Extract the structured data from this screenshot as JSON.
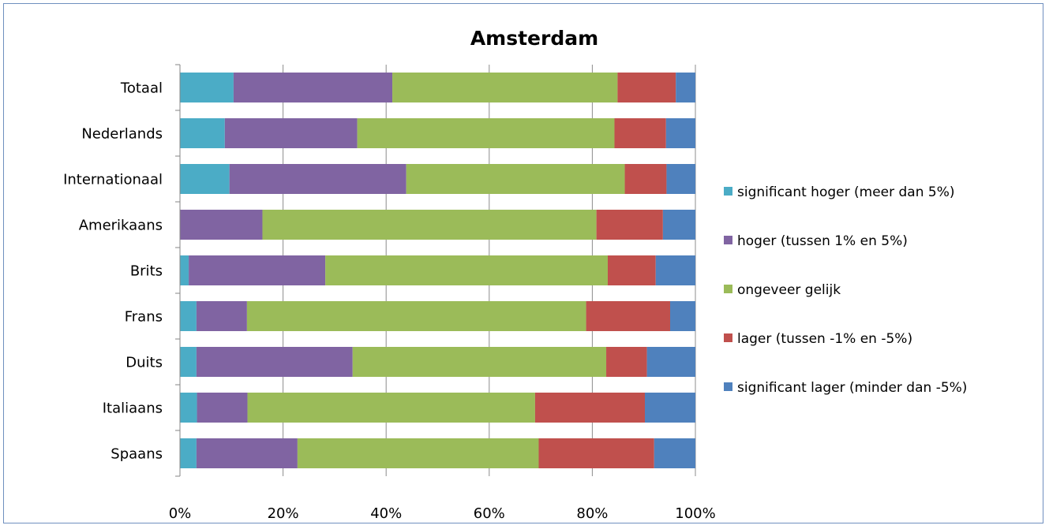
{
  "chart_data": {
    "type": "bar",
    "orientation": "horizontal",
    "stacked": true,
    "normalized": true,
    "title": "Amsterdam",
    "xlabel": "",
    "ylabel": "",
    "xlim": [
      0,
      100
    ],
    "x_ticks": [
      "0%",
      "20%",
      "40%",
      "60%",
      "80%",
      "100%"
    ],
    "grid": "vertical",
    "legend_position": "right",
    "categories": [
      "Totaal",
      "Nederlands",
      "Internationaal",
      "Amerikaans",
      "Brits",
      "Frans",
      "Duits",
      "Italiaans",
      "Spaans"
    ],
    "series": [
      {
        "name": "significant hoger (meer dan 5%)",
        "color": "#4bacc6",
        "values": [
          10.4,
          8.7,
          9.6,
          0,
          1.7,
          3.2,
          3.2,
          3.3,
          3.2
        ]
      },
      {
        "name": "hoger (tussen 1% en 5%)",
        "color": "#8064a2",
        "values": [
          30.8,
          25.7,
          34.3,
          16.0,
          26.5,
          9.8,
          30.3,
          9.8,
          19.6
        ]
      },
      {
        "name": "ongeveer gelijk",
        "color": "#9bbb59",
        "values": [
          43.7,
          49.9,
          42.4,
          64.8,
          54.8,
          65.8,
          49.2,
          55.8,
          46.8
        ]
      },
      {
        "name": "lager (tussen -1% en -5%)",
        "color": "#c0504d",
        "values": [
          11.3,
          10.0,
          8.1,
          12.9,
          9.3,
          16.3,
          7.9,
          21.3,
          22.4
        ]
      },
      {
        "name": "significant lager (minder dan -5%)",
        "color": "#4f81bd",
        "values": [
          3.8,
          5.7,
          5.6,
          6.3,
          7.7,
          4.9,
          9.4,
          9.8,
          8.0
        ]
      }
    ]
  }
}
